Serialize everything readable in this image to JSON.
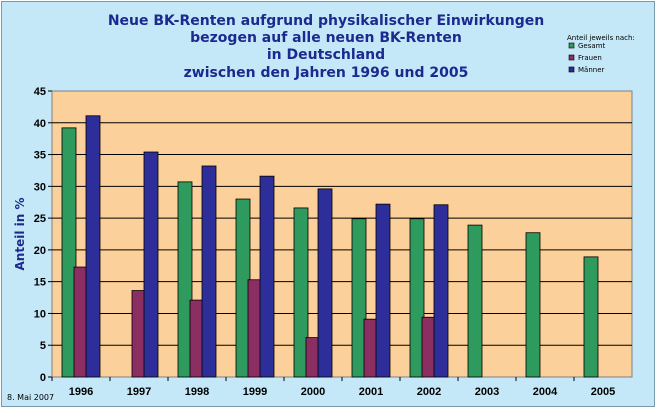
{
  "chart_data": {
    "type": "bar",
    "title_lines": [
      "Neue BK-Renten aufgrund physikalischer Einwirkungen",
      "bezogen auf alle neuen BK-Renten",
      "in Deutschland",
      "zwischen den Jahren 1996 und 2005"
    ],
    "xlabel": "",
    "ylabel": "Anteil in %",
    "ylim": [
      0,
      45
    ],
    "yticks": [
      0,
      5,
      10,
      15,
      20,
      25,
      30,
      35,
      40,
      45
    ],
    "grid": true,
    "categories": [
      "1996",
      "1997",
      "1998",
      "1999",
      "2000",
      "2001",
      "2002",
      "2003",
      "2004",
      "2005"
    ],
    "legend": {
      "title": "Anteil jeweils nach:",
      "placement": "top-right"
    },
    "series": [
      {
        "name": "Gesamt",
        "color": "#2e9a5e",
        "values": [
          39.2,
          null,
          30.7,
          28.0,
          26.6,
          24.9,
          24.9,
          23.9,
          22.7,
          18.9
        ]
      },
      {
        "name": "Frauen",
        "color": "#8b2f63",
        "values": [
          17.3,
          13.6,
          12.1,
          15.3,
          6.2,
          9.1,
          9.4,
          null,
          null,
          null
        ]
      },
      {
        "name": "Männer",
        "color": "#2e2e9a",
        "values": [
          41.1,
          35.4,
          33.2,
          31.6,
          29.6,
          27.2,
          27.1,
          null,
          null,
          null
        ]
      }
    ],
    "plot_background": "#fcd09a",
    "footnote": "8. Mai 2007"
  }
}
